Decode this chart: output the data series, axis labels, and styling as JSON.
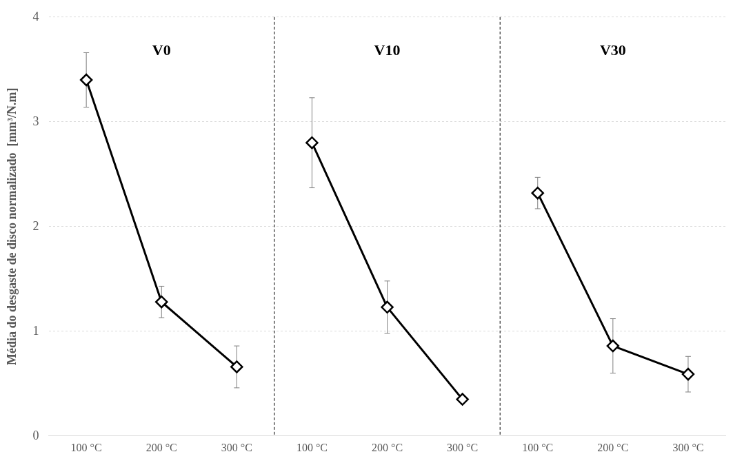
{
  "chart_data": {
    "type": "line",
    "ylabel": "Média do desgaste de disco normalizado  [mm³/N.m]",
    "categories": [
      "100 °C",
      "200 °C",
      "300 °C",
      "100 °C",
      "200 °C",
      "300 °C",
      "100 °C",
      "200 °C",
      "300 °C"
    ],
    "series": [
      {
        "color": "#000000",
        "values": [
          3.4,
          1.28,
          0.66,
          null,
          null,
          null,
          null,
          null,
          null
        ],
        "errors": [
          0.26,
          0.15,
          0.2,
          null,
          null,
          null,
          null,
          null,
          null
        ]
      },
      {
        "color": "#000000",
        "values": [
          null,
          null,
          null,
          2.8,
          1.23,
          0.35,
          null,
          null,
          null
        ],
        "errors": [
          null,
          null,
          null,
          0.43,
          0.25,
          null,
          null,
          null,
          null
        ]
      },
      {
        "color": "#000000",
        "values": [
          null,
          null,
          null,
          null,
          null,
          null,
          2.32,
          0.86,
          0.59
        ],
        "errors": [
          null,
          null,
          null,
          null,
          null,
          null,
          0.15,
          0.26,
          0.17
        ]
      }
    ],
    "annotations": [
      "V0",
      "V10",
      "V30"
    ],
    "ylim": [
      0,
      4
    ],
    "yticks": [
      0,
      1,
      2,
      3,
      4
    ],
    "grid": "y",
    "legend": false,
    "marker": "diamond",
    "line_style": "solid"
  }
}
